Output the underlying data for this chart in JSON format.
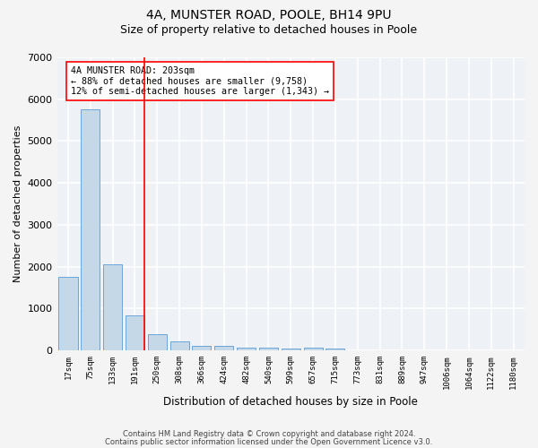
{
  "title1": "4A, MUNSTER ROAD, POOLE, BH14 9PU",
  "title2": "Size of property relative to detached houses in Poole",
  "xlabel": "Distribution of detached houses by size in Poole",
  "ylabel": "Number of detached properties",
  "categories": [
    "17sqm",
    "75sqm",
    "133sqm",
    "191sqm",
    "250sqm",
    "308sqm",
    "366sqm",
    "424sqm",
    "482sqm",
    "540sqm",
    "599sqm",
    "657sqm",
    "715sqm",
    "773sqm",
    "831sqm",
    "889sqm",
    "947sqm",
    "1006sqm",
    "1064sqm",
    "1122sqm",
    "1180sqm"
  ],
  "values": [
    1760,
    5760,
    2060,
    830,
    390,
    220,
    120,
    110,
    70,
    60,
    55,
    60,
    50,
    0,
    0,
    0,
    0,
    0,
    0,
    0,
    0
  ],
  "bar_color": "#c5d8e8",
  "bar_edge_color": "#5b9bd5",
  "annotation_line1": "4A MUNSTER ROAD: 203sqm",
  "annotation_line2": "← 88% of detached houses are smaller (9,758)",
  "annotation_line3": "12% of semi-detached houses are larger (1,343) →",
  "ylim": [
    0,
    7000
  ],
  "yticks": [
    0,
    1000,
    2000,
    3000,
    4000,
    5000,
    6000,
    7000
  ],
  "footer1": "Contains HM Land Registry data © Crown copyright and database right 2024.",
  "footer2": "Contains public sector information licensed under the Open Government Licence v3.0.",
  "bg_color": "#eef2f7",
  "grid_color": "#ffffff",
  "title1_fontsize": 10,
  "title2_fontsize": 9
}
